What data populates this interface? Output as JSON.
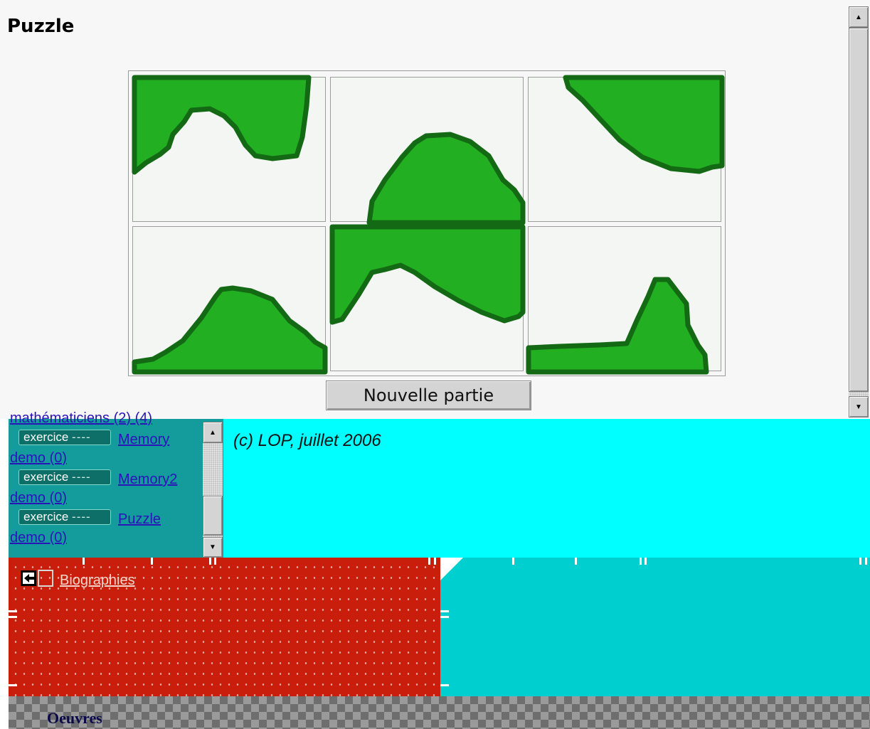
{
  "top": {
    "title": "Puzzle",
    "new_game_label": "Nouvelle partie"
  },
  "nav": {
    "partial_link": "mathématiciens (2) (4)",
    "items": [
      {
        "badge_label": "exercice",
        "badge_dashes": "----",
        "link_part1": "Memory",
        "link_part2": "demo (0)"
      },
      {
        "badge_label": "exercice",
        "badge_dashes": "----",
        "link_part1": "Memory2",
        "link_part2": "demo (0)"
      },
      {
        "badge_label": "exercice",
        "badge_dashes": "----",
        "link_part1": "Puzzle",
        "link_part2": "demo (0)"
      }
    ]
  },
  "footer": {
    "copyright": "(c) LOP, juillet 2006"
  },
  "biographies": {
    "link_label": "Biographies"
  },
  "oeuvres": {
    "label": "Oeuvres"
  },
  "colors": {
    "puzzle_fill": "#22b022",
    "puzzle_outline": "#146a14",
    "nav_bg": "#149c9c",
    "footer_bg": "#00ffff",
    "bio_bg": "#c91e0c",
    "bio_right_bg": "#00cfd0"
  }
}
